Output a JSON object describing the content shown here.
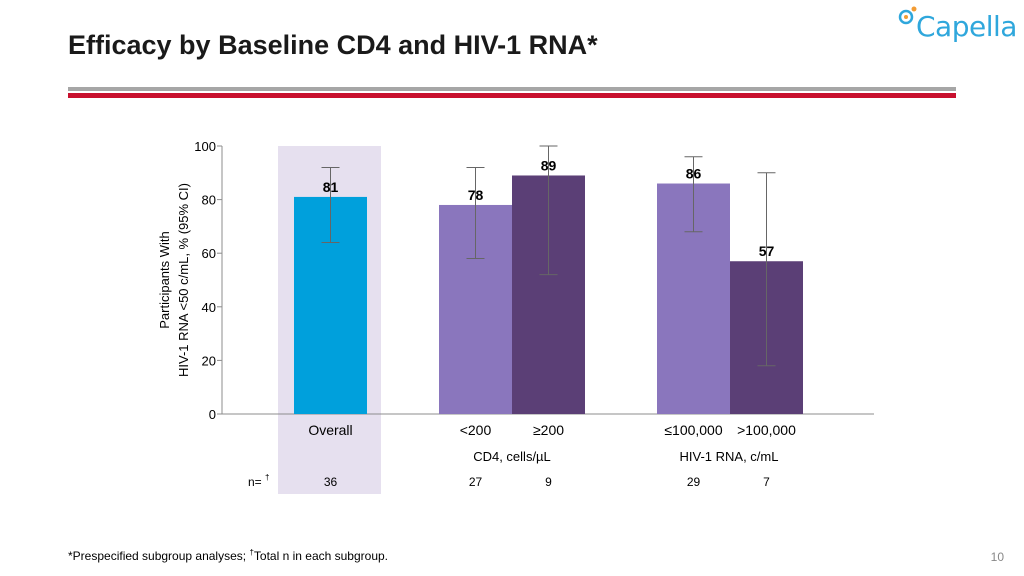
{
  "slide": {
    "title": "Efficacy by Baseline CD4 and HIV-1 RNA*",
    "logo_text": "Capella",
    "page_number": "10",
    "footnote_a": "*Prespecified subgroup analyses; ",
    "footnote_dagger": "†",
    "footnote_b": "Total n in each subgroup."
  },
  "colors": {
    "overall": "#00a0dc",
    "light_purple": "#8a76bd",
    "dark_purple": "#5b3f76",
    "highlight": "#e6e0ef",
    "red_rule": "#c8102e",
    "gray_rule": "#a6a6a6"
  },
  "chart_data": {
    "type": "bar",
    "ylabel_line1": "Participants With",
    "ylabel_line2": "HIV-1 RNA <50 c/mL, % (95% CI)",
    "ylim": [
      0,
      100
    ],
    "yticks": [
      0,
      20,
      40,
      60,
      80,
      100
    ],
    "n_label": "n=",
    "n_dagger": "†",
    "bars": [
      {
        "category": "Overall",
        "value": 81,
        "ci_low": 64,
        "ci_high": 92,
        "n": "36",
        "color": "#00a0dc"
      },
      {
        "category": "<200",
        "value": 78,
        "ci_low": 58,
        "ci_high": 92,
        "n": "27",
        "color": "#8a76bd"
      },
      {
        "category": "≥200",
        "value": 89,
        "ci_low": 52,
        "ci_high": 100,
        "n": "9",
        "color": "#5b3f76"
      },
      {
        "category": "≤100,000",
        "value": 86,
        "ci_low": 68,
        "ci_high": 96,
        "n": "29",
        "color": "#8a76bd"
      },
      {
        "category": ">100,000",
        "value": 57,
        "ci_low": 18,
        "ci_high": 90,
        "n": "7",
        "color": "#5b3f76"
      }
    ],
    "group_labels": [
      "CD4, cells/µL",
      "HIV-1 RNA, c/mL"
    ]
  }
}
